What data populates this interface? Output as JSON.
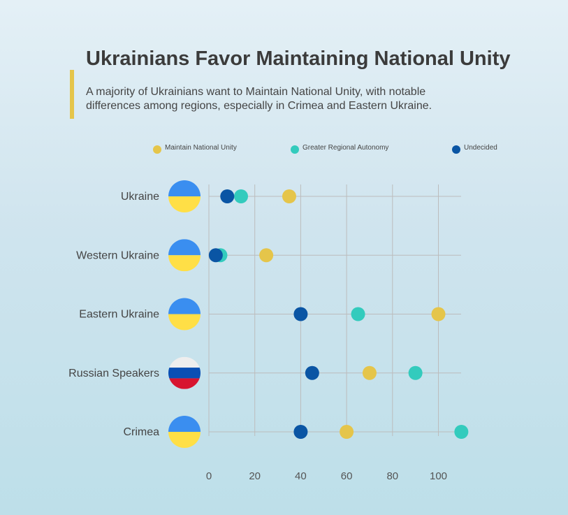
{
  "title": "Ukrainians Favor Maintaining National Unity",
  "subtitle": "A majority of Ukrainians want to Maintain National Unity, with notable differences among regions, especially in Crimea and Eastern Ukraine.",
  "colors": {
    "maintain": "#e5c54a",
    "autonomy": "#33cbbd",
    "undecided": "#0a55a4",
    "flag_blue": "#3a8ef0",
    "flag_yellow": "#ffdf46",
    "flag_white": "#eeeeee",
    "flag_russia_blue": "#0a4fb4",
    "flag_red": "#d7142f",
    "accent": "#e5c54a"
  },
  "chart_data": {
    "type": "scatter",
    "categories": [
      "Ukraine",
      "Western Ukraine",
      "Eastern Ukraine",
      "Russian Speakers",
      "Crimea"
    ],
    "category_icons": [
      "ukraine-flag",
      "ukraine-flag",
      "ukraine-flag",
      "russia-flag",
      "ukraine-flag"
    ],
    "series": [
      {
        "name": "Maintain National Unity",
        "color_key": "maintain",
        "values": [
          35,
          25,
          100,
          70,
          60
        ]
      },
      {
        "name": "Greater Regional Autonomy",
        "color_key": "autonomy",
        "values": [
          14,
          5,
          65,
          90,
          110
        ]
      },
      {
        "name": "Undecided",
        "color_key": "undecided",
        "values": [
          8,
          3,
          40,
          45,
          40
        ]
      }
    ],
    "x_ticks": [
      0,
      20,
      40,
      60,
      80,
      100
    ],
    "xlim": [
      0,
      110
    ],
    "grid": true,
    "legend": "top"
  }
}
